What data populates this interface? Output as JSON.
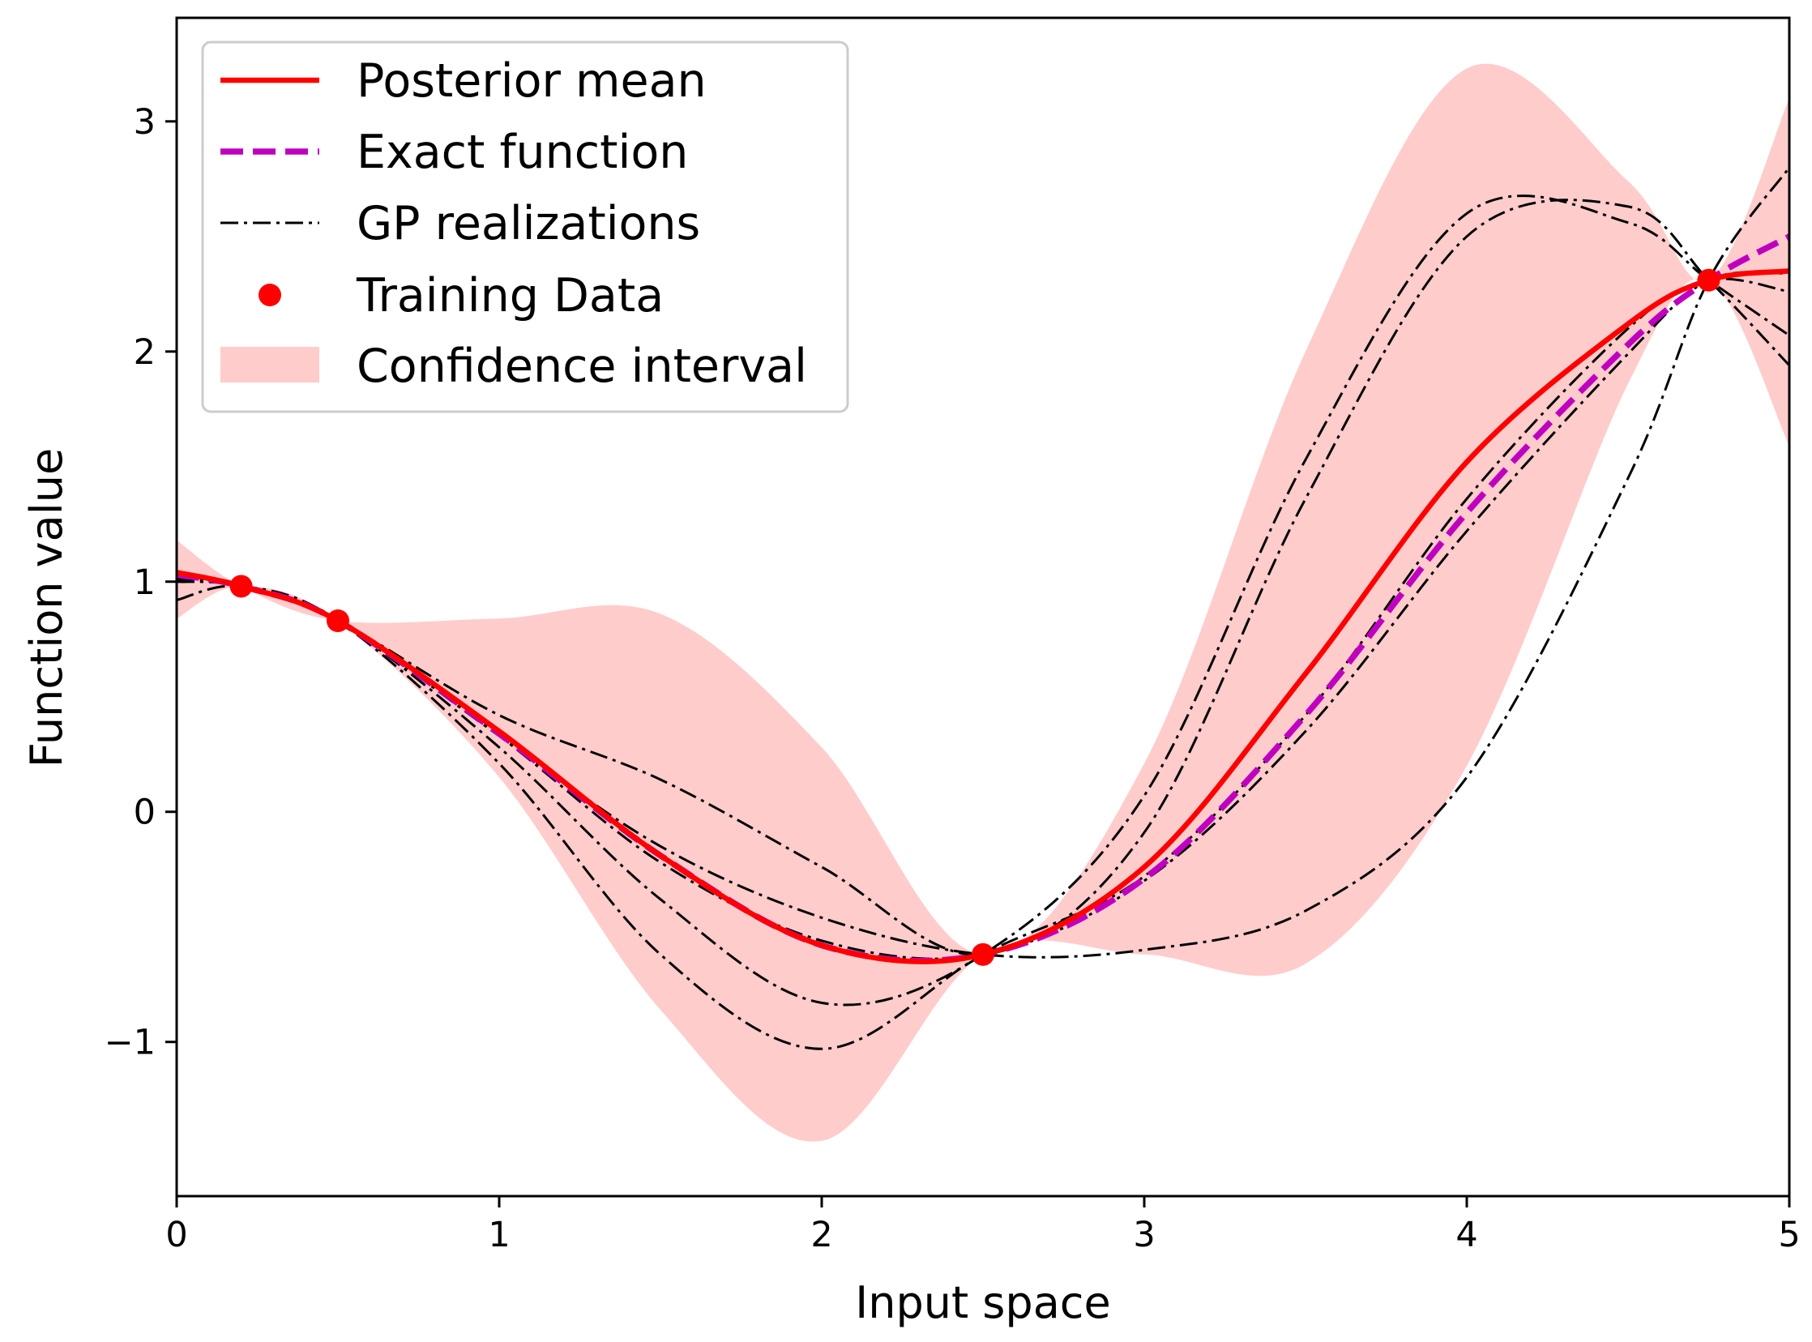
{
  "chart_data": {
    "type": "line",
    "title": "",
    "xlabel": "Input space",
    "ylabel": "Function value",
    "xlim": [
      0,
      5
    ],
    "ylim": [
      -1.67,
      3.45
    ],
    "xticks": [
      0,
      1,
      2,
      3,
      4,
      5
    ],
    "xtick_labels": [
      "0",
      "1",
      "2",
      "3",
      "4",
      "5"
    ],
    "yticks": [
      -1,
      0,
      1,
      2,
      3
    ],
    "ytick_labels": [
      "−1",
      "0",
      "1",
      "2",
      "3"
    ],
    "grid": false,
    "legend_position": "upper-left",
    "x": [
      0,
      0.2,
      0.5,
      1.0,
      1.5,
      2.0,
      2.5,
      3.0,
      3.5,
      4.0,
      4.5,
      4.75,
      5.0
    ],
    "series": [
      {
        "name": "Posterior mean",
        "kind": "line",
        "color": "#ff0000",
        "style": "solid",
        "values": [
          1.04,
          0.98,
          0.83,
          0.35,
          -0.19,
          -0.58,
          -0.62,
          -0.24,
          0.6,
          1.52,
          2.12,
          2.31,
          2.35
        ]
      },
      {
        "name": "Exact function",
        "kind": "line",
        "color": "#bf00bf",
        "style": "dashed",
        "values": [
          1.03,
          0.98,
          0.83,
          0.34,
          -0.19,
          -0.58,
          -0.62,
          -0.29,
          0.42,
          1.3,
          2.03,
          2.31,
          2.5
        ]
      },
      {
        "name": "GP realizations",
        "kind": "lines",
        "color": "#000000",
        "style": "dashdot",
        "realizations": [
          [
            1.03,
            0.98,
            0.83,
            0.42,
            0.14,
            -0.24,
            -0.62,
            -0.09,
            1.36,
            2.5,
            2.63,
            2.31,
            1.94
          ],
          [
            1.02,
            0.98,
            0.83,
            0.33,
            -0.15,
            -0.46,
            -0.62,
            -0.6,
            -0.43,
            0.15,
            1.45,
            2.31,
            2.8
          ],
          [
            1.01,
            0.98,
            0.83,
            0.28,
            -0.38,
            -0.83,
            -0.62,
            0.07,
            1.53,
            2.6,
            2.56,
            2.31,
            2.07
          ],
          [
            0.92,
            0.98,
            0.83,
            0.21,
            -0.62,
            -1.03,
            -0.62,
            -0.28,
            0.42,
            1.36,
            2.1,
            2.31,
            2.26
          ],
          [
            1.0,
            0.98,
            0.83,
            0.33,
            -0.22,
            -0.56,
            -0.62,
            -0.3,
            0.35,
            1.22,
            1.99,
            2.31,
            2.34
          ]
        ]
      },
      {
        "name": "Training Data",
        "kind": "scatter",
        "color": "#ff0000",
        "x": [
          0.2,
          0.5,
          2.5,
          4.75
        ],
        "y": [
          0.98,
          0.83,
          -0.62,
          2.31
        ]
      },
      {
        "name": "Confidence interval",
        "kind": "band",
        "color": "#ffcccc",
        "lower": [
          0.84,
          0.98,
          0.83,
          0.15,
          -0.86,
          -1.43,
          -0.62,
          -0.62,
          -0.66,
          0.2,
          1.86,
          2.31,
          1.59
        ],
        "upper": [
          1.18,
          0.98,
          0.83,
          0.84,
          0.86,
          0.28,
          -0.62,
          0.21,
          2.0,
          3.23,
          2.74,
          2.31,
          3.1
        ]
      }
    ]
  }
}
